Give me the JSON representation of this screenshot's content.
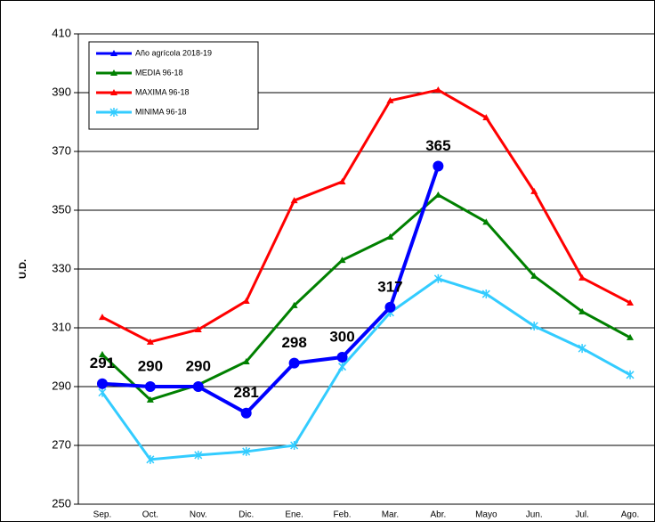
{
  "chart_data": {
    "type": "line",
    "y_label": "U.D.",
    "categories": [
      "Sep.",
      "Oct.",
      "Nov.",
      "Dic.",
      "Ene.",
      "Feb.",
      "Mar.",
      "Abr.",
      "Mayo",
      "Jun.",
      "Jul.",
      "Ago."
    ],
    "series": [
      {
        "name": "Año agrícola 2018-19",
        "color": "#0000ff",
        "marker": "circle",
        "values": [
          291,
          290,
          290,
          281,
          298,
          300,
          317,
          365,
          null,
          null,
          null,
          null
        ]
      },
      {
        "name": "MEDIA 96-18",
        "color": "#008000",
        "marker": "triangle",
        "values": [
          300.9,
          285.5,
          290.6,
          298.5,
          317.6,
          333,
          340.9,
          355.2,
          346,
          327.6,
          315.5,
          306.7
        ]
      },
      {
        "name": "MAXIMA 96-18",
        "color": "#ff0000",
        "marker": "triangle",
        "values": [
          313.6,
          305.2,
          309.4,
          319.1,
          353.3,
          359.7,
          387.3,
          390.9,
          381.5,
          356.4,
          327,
          318.5
        ]
      },
      {
        "name": "MINIMA 96-18",
        "color": "#33ccff",
        "marker": "star",
        "values": [
          288,
          265.2,
          266.7,
          267.9,
          270,
          296.8,
          315.2,
          326.7,
          321.5,
          310.6,
          303,
          294
        ]
      }
    ],
    "ylim": [
      250,
      410
    ],
    "yticks": [
      250,
      270,
      290,
      310,
      330,
      350,
      370,
      390,
      410
    ],
    "grid": true
  }
}
